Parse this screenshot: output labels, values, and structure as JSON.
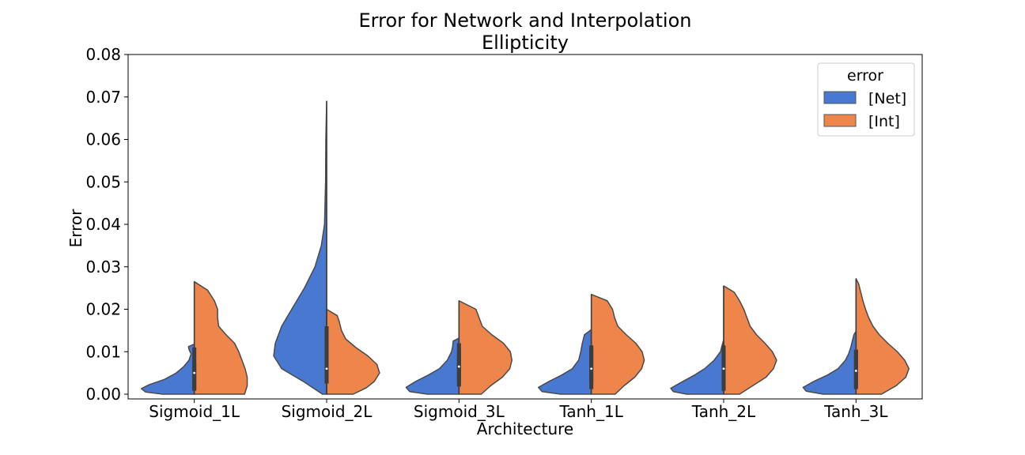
{
  "chart_data": {
    "type": "violin",
    "title": "Error for Network and Interpolation",
    "subtitle": "Ellipticity",
    "xlabel": "Architecture",
    "ylabel": "Error",
    "ylim": [
      0,
      0.08
    ],
    "yticks": [
      "0.00",
      "0.01",
      "0.02",
      "0.03",
      "0.04",
      "0.05",
      "0.06",
      "0.07",
      "0.08"
    ],
    "categories": [
      "Sigmoid_1L",
      "Sigmoid_2L",
      "Sigmoid_3L",
      "Tanh_1L",
      "Tanh_2L",
      "Tanh_3L"
    ],
    "legend": {
      "title": "error",
      "position": "top-right"
    },
    "grid": false,
    "series": [
      {
        "name": "[Net]",
        "color": "#4878d0",
        "side": "left",
        "groups": [
          {
            "min": 0.0,
            "max": 0.0118,
            "q1": 0.0012,
            "median": 0.003,
            "q3": 0.0075,
            "profile": [
              [
                0.0,
                0.6
              ],
              [
                0.0005,
                0.92
              ],
              [
                0.0013,
                1.0
              ],
              [
                0.0022,
                0.86
              ],
              [
                0.0035,
                0.56
              ],
              [
                0.005,
                0.34
              ],
              [
                0.0065,
                0.2
              ],
              [
                0.008,
                0.1
              ],
              [
                0.0095,
                0.06
              ],
              [
                0.0105,
                0.1
              ],
              [
                0.0112,
                0.11
              ],
              [
                0.0118,
                0.0
              ]
            ]
          },
          {
            "min": 0.0,
            "max": 0.069,
            "q1": 0.004,
            "median": 0.008,
            "q3": 0.016,
            "profile": [
              [
                0.0,
                0.08
              ],
              [
                0.003,
                0.44
              ],
              [
                0.006,
                0.85
              ],
              [
                0.009,
                1.0
              ],
              [
                0.012,
                0.97
              ],
              [
                0.016,
                0.85
              ],
              [
                0.02,
                0.66
              ],
              [
                0.025,
                0.42
              ],
              [
                0.03,
                0.22
              ],
              [
                0.035,
                0.1
              ],
              [
                0.04,
                0.04
              ],
              [
                0.05,
                0.02
              ],
              [
                0.06,
                0.015
              ],
              [
                0.069,
                0.0
              ]
            ]
          },
          {
            "min": 0.0,
            "max": 0.0132,
            "q1": 0.0018,
            "median": 0.005,
            "q3": 0.0105,
            "profile": [
              [
                0.0,
                0.6
              ],
              [
                0.0006,
                0.93
              ],
              [
                0.0016,
                1.0
              ],
              [
                0.003,
                0.82
              ],
              [
                0.0045,
                0.58
              ],
              [
                0.006,
                0.37
              ],
              [
                0.008,
                0.22
              ],
              [
                0.01,
                0.14
              ],
              [
                0.0112,
                0.12
              ],
              [
                0.0125,
                0.11
              ],
              [
                0.0132,
                0.0
              ]
            ]
          },
          {
            "min": 0.0,
            "max": 0.0152,
            "q1": 0.0012,
            "median": 0.0045,
            "q3": 0.011,
            "profile": [
              [
                0.0,
                0.58
              ],
              [
                0.0006,
                0.93
              ],
              [
                0.0016,
                1.0
              ],
              [
                0.003,
                0.8
              ],
              [
                0.0045,
                0.56
              ],
              [
                0.006,
                0.36
              ],
              [
                0.008,
                0.24
              ],
              [
                0.01,
                0.2
              ],
              [
                0.012,
                0.17
              ],
              [
                0.014,
                0.13
              ],
              [
                0.0152,
                0.0
              ]
            ]
          },
          {
            "min": 0.0,
            "max": 0.0128,
            "q1": 0.0008,
            "median": 0.0048,
            "q3": 0.01,
            "profile": [
              [
                0.0,
                0.7
              ],
              [
                0.0006,
                0.95
              ],
              [
                0.0014,
                1.0
              ],
              [
                0.0028,
                0.8
              ],
              [
                0.0045,
                0.55
              ],
              [
                0.006,
                0.36
              ],
              [
                0.008,
                0.18
              ],
              [
                0.01,
                0.06
              ],
              [
                0.0115,
                0.03
              ],
              [
                0.0128,
                0.0
              ]
            ]
          },
          {
            "min": 0.0,
            "max": 0.0148,
            "q1": 0.0012,
            "median": 0.004,
            "q3": 0.0103,
            "profile": [
              [
                0.0,
                0.62
              ],
              [
                0.0007,
                0.94
              ],
              [
                0.0016,
                1.0
              ],
              [
                0.003,
                0.8
              ],
              [
                0.0045,
                0.54
              ],
              [
                0.006,
                0.34
              ],
              [
                0.008,
                0.2
              ],
              [
                0.0095,
                0.14
              ],
              [
                0.011,
                0.1
              ],
              [
                0.0125,
                0.07
              ],
              [
                0.014,
                0.04
              ],
              [
                0.0148,
                0.0
              ]
            ]
          }
        ]
      },
      {
        "name": "[Int]",
        "color": "#ee854a",
        "side": "right",
        "groups": [
          {
            "min": 0.0,
            "max": 0.0265,
            "q1": 0.0008,
            "median": 0.005,
            "q3": 0.011,
            "profile": [
              [
                0.0,
                0.95
              ],
              [
                0.002,
                1.0
              ],
              [
                0.004,
                1.0
              ],
              [
                0.006,
                0.96
              ],
              [
                0.008,
                0.9
              ],
              [
                0.01,
                0.84
              ],
              [
                0.012,
                0.76
              ],
              [
                0.014,
                0.6
              ],
              [
                0.016,
                0.46
              ],
              [
                0.018,
                0.44
              ],
              [
                0.02,
                0.44
              ],
              [
                0.022,
                0.38
              ],
              [
                0.0245,
                0.25
              ],
              [
                0.0265,
                0.0
              ]
            ]
          },
          {
            "min": 0.0,
            "max": 0.02,
            "q1": 0.0025,
            "median": 0.006,
            "q3": 0.011,
            "profile": [
              [
                0.0,
                0.5
              ],
              [
                0.0015,
                0.75
              ],
              [
                0.003,
                0.9
              ],
              [
                0.005,
                1.0
              ],
              [
                0.007,
                0.95
              ],
              [
                0.009,
                0.78
              ],
              [
                0.011,
                0.55
              ],
              [
                0.013,
                0.36
              ],
              [
                0.015,
                0.28
              ],
              [
                0.017,
                0.24
              ],
              [
                0.0185,
                0.2
              ],
              [
                0.02,
                0.0
              ]
            ]
          },
          {
            "min": 0.0,
            "max": 0.022,
            "q1": 0.0025,
            "median": 0.0065,
            "q3": 0.012,
            "profile": [
              [
                0.0,
                0.42
              ],
              [
                0.002,
                0.6
              ],
              [
                0.004,
                0.82
              ],
              [
                0.006,
                0.96
              ],
              [
                0.008,
                1.0
              ],
              [
                0.01,
                0.97
              ],
              [
                0.012,
                0.84
              ],
              [
                0.014,
                0.62
              ],
              [
                0.016,
                0.44
              ],
              [
                0.018,
                0.38
              ],
              [
                0.02,
                0.32
              ],
              [
                0.022,
                0.0
              ]
            ]
          },
          {
            "min": 0.0,
            "max": 0.0235,
            "q1": 0.0025,
            "median": 0.006,
            "q3": 0.0115,
            "profile": [
              [
                0.0,
                0.45
              ],
              [
                0.002,
                0.62
              ],
              [
                0.004,
                0.82
              ],
              [
                0.006,
                0.95
              ],
              [
                0.008,
                1.0
              ],
              [
                0.01,
                0.96
              ],
              [
                0.012,
                0.84
              ],
              [
                0.014,
                0.66
              ],
              [
                0.016,
                0.5
              ],
              [
                0.018,
                0.44
              ],
              [
                0.02,
                0.4
              ],
              [
                0.022,
                0.3
              ],
              [
                0.0235,
                0.0
              ]
            ]
          },
          {
            "min": 0.0,
            "max": 0.0255,
            "q1": 0.002,
            "median": 0.006,
            "q3": 0.0115,
            "profile": [
              [
                0.0,
                0.3
              ],
              [
                0.002,
                0.55
              ],
              [
                0.004,
                0.8
              ],
              [
                0.006,
                0.94
              ],
              [
                0.008,
                1.0
              ],
              [
                0.01,
                0.92
              ],
              [
                0.012,
                0.78
              ],
              [
                0.014,
                0.62
              ],
              [
                0.016,
                0.5
              ],
              [
                0.018,
                0.44
              ],
              [
                0.02,
                0.38
              ],
              [
                0.022,
                0.3
              ],
              [
                0.024,
                0.2
              ],
              [
                0.0255,
                0.0
              ]
            ]
          },
          {
            "min": 0.0,
            "max": 0.0272,
            "q1": 0.0015,
            "median": 0.0055,
            "q3": 0.0105,
            "profile": [
              [
                0.0,
                0.48
              ],
              [
                0.002,
                0.76
              ],
              [
                0.004,
                0.94
              ],
              [
                0.006,
                1.0
              ],
              [
                0.008,
                0.92
              ],
              [
                0.01,
                0.78
              ],
              [
                0.012,
                0.6
              ],
              [
                0.014,
                0.44
              ],
              [
                0.016,
                0.32
              ],
              [
                0.018,
                0.24
              ],
              [
                0.02,
                0.18
              ],
              [
                0.022,
                0.13
              ],
              [
                0.024,
                0.09
              ],
              [
                0.026,
                0.05
              ],
              [
                0.0272,
                0.0
              ]
            ]
          }
        ]
      }
    ]
  }
}
